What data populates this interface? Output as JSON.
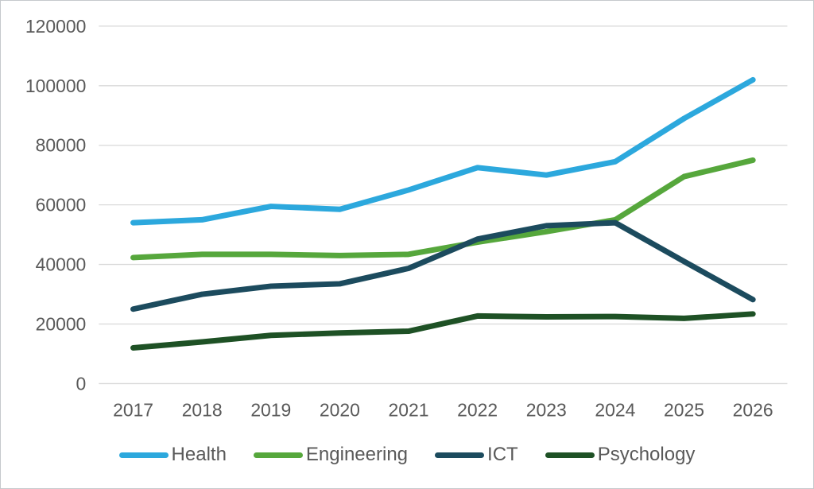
{
  "window": {
    "background": "#ffffff",
    "border_color": "#c6c9cc"
  },
  "chart_data": {
    "type": "line",
    "title": "",
    "subtitle": "",
    "xlabel": "",
    "ylabel": "",
    "categories": [
      "2017",
      "2018",
      "2019",
      "2020",
      "2021",
      "2022",
      "2023",
      "2024",
      "2025",
      "2026"
    ],
    "series": [
      {
        "name": "Health",
        "color": "#2CA8DD",
        "values": [
          54000,
          55000,
          59500,
          58500,
          65000,
          72500,
          70000,
          74500,
          89000,
          102000
        ]
      },
      {
        "name": "Engineering",
        "color": "#56A73C",
        "values": [
          42300,
          43400,
          43400,
          43000,
          43400,
          47500,
          51000,
          55000,
          69500,
          75000
        ]
      },
      {
        "name": "ICT",
        "color": "#1C4B5E",
        "values": [
          25000,
          30000,
          32700,
          33500,
          38700,
          48500,
          53000,
          54000,
          41000,
          28200
        ]
      },
      {
        "name": "Psychology",
        "color": "#1E5125",
        "values": [
          12000,
          14000,
          16200,
          17000,
          17600,
          22700,
          22400,
          22500,
          21900,
          23400
        ]
      }
    ],
    "ylim": [
      0,
      120000
    ],
    "y_ticks": [
      0,
      20000,
      40000,
      60000,
      80000,
      100000,
      120000
    ],
    "y_tick_labels": [
      "0",
      "20000",
      "40000",
      "60000",
      "80000",
      "100000",
      "120000"
    ],
    "grid": "horizontal-only",
    "gridline_color": "#D9D9D9",
    "axis_label_color": "#595959",
    "line_width": 7,
    "legend_position": "bottom",
    "legend_labels": [
      "Health",
      "Engineering",
      "ICT",
      "Psychology"
    ]
  }
}
